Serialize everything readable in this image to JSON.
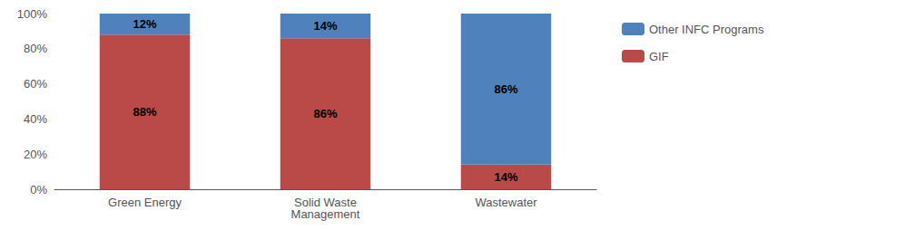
{
  "chart_data": {
    "type": "bar",
    "stacked": true,
    "categories": [
      "Green Energy",
      "Solid Waste\nManagement",
      "Wastewater"
    ],
    "series": [
      {
        "name": "GIF",
        "color": "#b94a48",
        "values": [
          88,
          86,
          14
        ],
        "value_labels": [
          "88%",
          "86%",
          "14%"
        ]
      },
      {
        "name": "Other INFC Programs",
        "color": "#4f81bd",
        "values": [
          12,
          14,
          86
        ],
        "value_labels": [
          "12%",
          "14%",
          "86%"
        ]
      }
    ],
    "ylim": [
      0,
      100
    ],
    "yticks": [
      {
        "value": 0,
        "label": "0%"
      },
      {
        "value": 20,
        "label": "20%"
      },
      {
        "value": 40,
        "label": "40%"
      },
      {
        "value": 60,
        "label": "60%"
      },
      {
        "value": 80,
        "label": "80%"
      },
      {
        "value": 100,
        "label": "100%"
      }
    ],
    "data_labels": true,
    "grid": false,
    "legend": "right"
  }
}
